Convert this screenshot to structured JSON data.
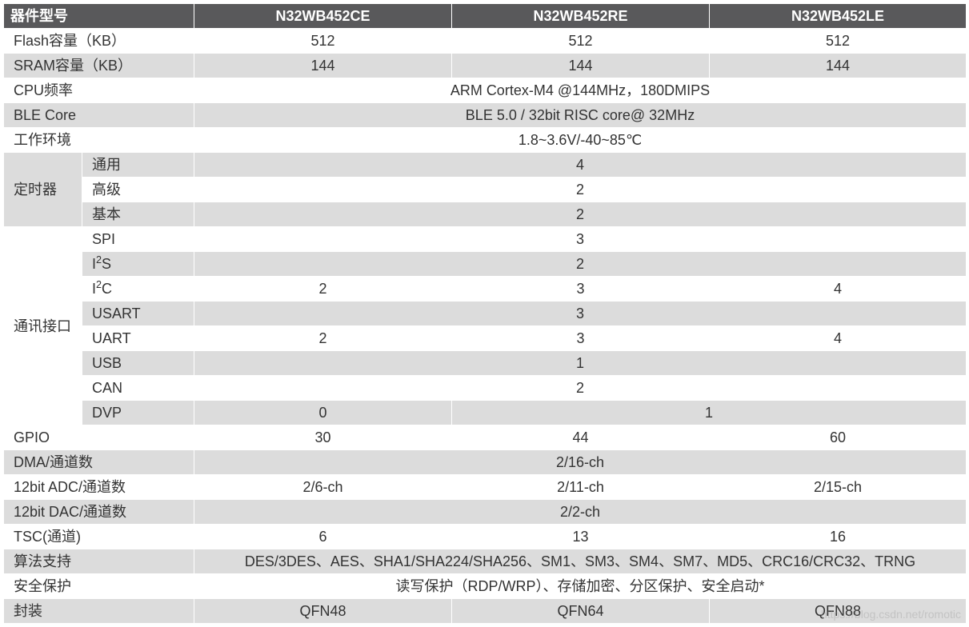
{
  "header": {
    "label": "器件型号",
    "cols": [
      "N32WB452CE",
      "N32WB452RE",
      "N32WB452LE"
    ]
  },
  "rows": {
    "flash": {
      "label": "Flash容量（KB）",
      "vals": [
        "512",
        "512",
        "512"
      ]
    },
    "sram": {
      "label": "SRAM容量（KB）",
      "vals": [
        "144",
        "144",
        "144"
      ]
    },
    "cpu": {
      "label": "CPU频率",
      "span": "ARM Cortex-M4 @144MHz，180DMIPS"
    },
    "ble": {
      "label": "BLE Core",
      "span": "BLE 5.0 / 32bit RISC core@ 32MHz"
    },
    "env": {
      "label": "工作环境",
      "span": "1.8~3.6V/-40~85℃"
    },
    "timer": {
      "group": "定时器",
      "gen": {
        "label": "通用",
        "span": "4"
      },
      "adv": {
        "label": "高级",
        "span": "2"
      },
      "base": {
        "label": "基本",
        "span": "2"
      }
    },
    "comm": {
      "group": "通讯接口",
      "spi": {
        "label": "SPI",
        "span": "3"
      },
      "i2s": {
        "label": "I²S",
        "span": "2"
      },
      "i2c": {
        "label": "I²C",
        "vals": [
          "2",
          "3",
          "4"
        ]
      },
      "usart": {
        "label": "USART",
        "span": "3"
      },
      "uart": {
        "label": "UART",
        "vals": [
          "2",
          "3",
          "4"
        ]
      },
      "usb": {
        "label": "USB",
        "span": "1"
      },
      "can": {
        "label": "CAN",
        "span": "2"
      },
      "dvp": {
        "label": "DVP",
        "vals2": [
          "0",
          "1"
        ]
      }
    },
    "gpio": {
      "label": "GPIO",
      "vals": [
        "30",
        "44",
        "60"
      ]
    },
    "dma": {
      "label": "DMA/通道数",
      "span": "2/16-ch"
    },
    "adc": {
      "label": "12bit ADC/通道数",
      "vals": [
        "2/6-ch",
        "2/11-ch",
        "2/15-ch"
      ]
    },
    "dac": {
      "label": "12bit DAC/通道数",
      "span": "2/2-ch"
    },
    "tsc": {
      "label": "TSC(通道)",
      "vals": [
        "6",
        "13",
        "16"
      ]
    },
    "algo": {
      "label": "算法支持",
      "span": "DES/3DES、AES、SHA1/SHA224/SHA256、SM1、SM3、SM4、SM7、MD5、CRC16/CRC32、TRNG"
    },
    "sec": {
      "label": "安全保护",
      "span": "读写保护（RDP/WRP）、存储加密、分区保护、安全启动*"
    },
    "pkg": {
      "label": "封装",
      "vals": [
        "QFN48",
        "QFN64",
        "QFN88"
      ]
    }
  },
  "watermark": "https://blog.csdn.net/romotic"
}
